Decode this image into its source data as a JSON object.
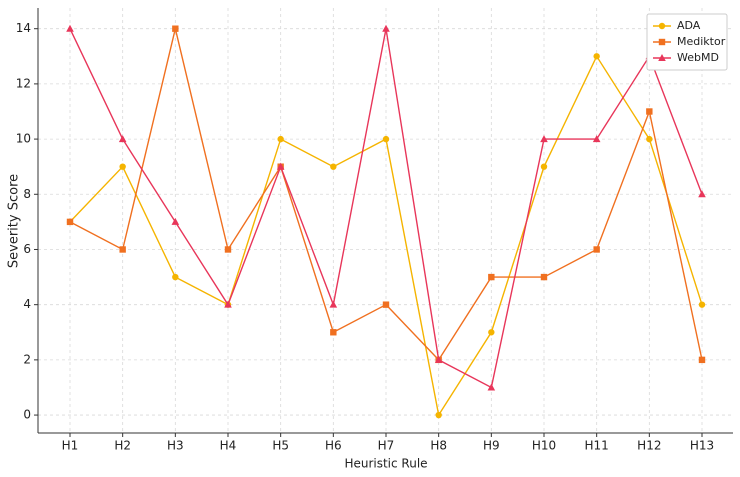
{
  "chart_data": {
    "type": "line",
    "x_label": "Heuristic Rule",
    "y_label": "Severity Score",
    "categories": [
      "H1",
      "H2",
      "H3",
      "H4",
      "H5",
      "H6",
      "H7",
      "H8",
      "H9",
      "H10",
      "H11",
      "H12",
      "H13"
    ],
    "series": [
      {
        "name": "ADA",
        "color": "#f5b400",
        "marker": "circle",
        "values": [
          7,
          9,
          5,
          4,
          10,
          9,
          10,
          0,
          3,
          9,
          13,
          10,
          4
        ]
      },
      {
        "name": "Mediktor",
        "color": "#f07020",
        "marker": "square",
        "values": [
          7,
          6,
          14,
          6,
          9,
          3,
          4,
          2,
          5,
          5,
          6,
          11,
          2
        ]
      },
      {
        "name": "WebMD",
        "color": "#e8365a",
        "marker": "triangle",
        "values": [
          14,
          10,
          7,
          4,
          9,
          4,
          14,
          2,
          1,
          10,
          10,
          13,
          8
        ]
      }
    ],
    "ylim": [
      -0.65,
      14.75
    ],
    "yticks": [
      0,
      2,
      4,
      6,
      8,
      10,
      12,
      14
    ],
    "grid": true,
    "legend": "upper right"
  }
}
